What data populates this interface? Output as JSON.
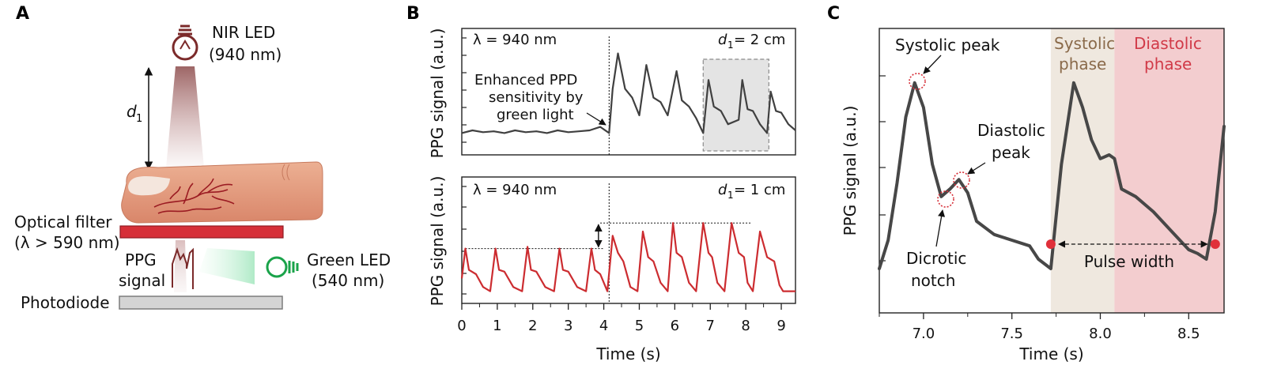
{
  "panel_a": {
    "label": "A",
    "nir_led": "NIR LED",
    "nir_wavelength": "(940 nm)",
    "d1_symbol": "d",
    "d1_sub": "1",
    "optical_filter": "Optical filter",
    "filter_spec": "(λ > 590 nm)",
    "ppg_signal_1": "PPG",
    "ppg_signal_2": "signal",
    "green_led": "Green LED",
    "green_wavelength": "(540 nm)",
    "photodiode": "Photodiode",
    "colors": {
      "nir": "#7b2a2a",
      "green": "#1aa34a",
      "filter": "#d62f38",
      "finger": "#e6987a",
      "vessel": "#9b1b22"
    }
  },
  "panel_b": {
    "label": "B",
    "ylabel": "PPG signal (a.u.)",
    "xlabel": "Time (s)",
    "top_wavelength": "λ = 940 nm",
    "top_distance": "d",
    "top_distance_sub": "1",
    "top_distance_value": " = 2 cm",
    "bottom_wavelength": "λ = 940 nm",
    "bottom_distance": "d",
    "bottom_distance_sub": "1",
    "bottom_distance_value": " = 1 cm",
    "annotation_1": "Enhanced PPD",
    "annotation_2": "sensitivity by",
    "annotation_3": "green light",
    "colors": {
      "top": "#404040",
      "bottom": "#cc2c30",
      "highlight": "#e4e4e4"
    }
  },
  "panel_c": {
    "label": "C",
    "ylabel": "PPG signal (a.u.)",
    "xlabel": "Time (s)",
    "systolic_peak": "Systolic peak",
    "diastolic_peak_1": "Diastolic",
    "diastolic_peak_2": "peak",
    "dicrotic_1": "Dicrotic",
    "dicrotic_2": "notch",
    "systolic_phase_1": "Systolic",
    "systolic_phase_2": "phase",
    "diastolic_phase_1": "Diastolic",
    "diastolic_phase_2": "phase",
    "pulse_width": "Pulse width",
    "colors": {
      "systolic_phase": "#efe8df",
      "diastolic_phase": "#f3cdcf",
      "systolic_text": "#8a6a4a",
      "diastolic_text": "#d13a48",
      "marker": "#e0303a"
    }
  },
  "chart_data": [
    {
      "type": "line",
      "panel": "B-top",
      "title": "",
      "xlabel": "Time (s)",
      "ylabel": "PPG signal (a.u.)",
      "xlim": [
        0,
        9.4
      ],
      "x_ticks": [
        0,
        1,
        2,
        3,
        4,
        5,
        6,
        7,
        8,
        9
      ],
      "series": [
        {
          "x": [
            0,
            0.3,
            0.6,
            0.9,
            1.2,
            1.5,
            1.8,
            2.1,
            2.4,
            2.7,
            3.0,
            3.3,
            3.6,
            3.9,
            4.15,
            4.25,
            4.4,
            4.6,
            4.8,
            5.0,
            5.2,
            5.4,
            5.6,
            5.8,
            6.05,
            6.2,
            6.4,
            6.6,
            6.8,
            6.95,
            7.1,
            7.3,
            7.5,
            7.8,
            7.9,
            8.05,
            8.2,
            8.4,
            8.6,
            8.7,
            8.85,
            9.0,
            9.2,
            9.4
          ],
          "y": [
            0.05,
            0.08,
            0.06,
            0.07,
            0.05,
            0.08,
            0.06,
            0.07,
            0.05,
            0.08,
            0.06,
            0.07,
            0.08,
            0.12,
            0.05,
            0.55,
            0.95,
            0.55,
            0.45,
            0.25,
            0.82,
            0.45,
            0.4,
            0.25,
            0.75,
            0.42,
            0.35,
            0.22,
            0.05,
            0.65,
            0.35,
            0.3,
            0.15,
            0.2,
            0.65,
            0.32,
            0.3,
            0.15,
            0.05,
            0.52,
            0.3,
            0.28,
            0.15,
            0.08
          ]
        }
      ],
      "highlight_x": [
        6.8,
        8.65
      ]
    },
    {
      "type": "line",
      "panel": "B-bottom",
      "title": "",
      "xlabel": "Time (s)",
      "ylabel": "PPG signal (a.u.)",
      "xlim": [
        0,
        9.4
      ],
      "x_ticks": [
        0,
        1,
        2,
        3,
        4,
        5,
        6,
        7,
        8,
        9
      ],
      "series": [
        {
          "x": [
            0,
            0.1,
            0.2,
            0.4,
            0.6,
            0.8,
            0.95,
            1.05,
            1.2,
            1.45,
            1.7,
            1.85,
            1.95,
            2.1,
            2.35,
            2.6,
            2.75,
            2.85,
            3.0,
            3.25,
            3.5,
            3.65,
            3.75,
            3.9,
            4.1,
            4.25,
            4.4,
            4.55,
            4.75,
            4.95,
            5.1,
            5.25,
            5.4,
            5.6,
            5.8,
            5.95,
            6.05,
            6.2,
            6.4,
            6.6,
            6.8,
            6.95,
            7.05,
            7.2,
            7.4,
            7.6,
            7.8,
            7.95,
            8.05,
            8.2,
            8.4,
            8.6,
            8.8,
            8.95,
            9.05,
            9.2,
            9.4
          ],
          "y": [
            0.2,
            0.55,
            0.3,
            0.25,
            0.1,
            0.05,
            0.55,
            0.3,
            0.28,
            0.1,
            0.05,
            0.57,
            0.3,
            0.28,
            0.1,
            0.05,
            0.55,
            0.3,
            0.28,
            0.1,
            0.05,
            0.55,
            0.3,
            0.25,
            0.05,
            0.7,
            0.5,
            0.4,
            0.1,
            0.05,
            0.75,
            0.45,
            0.4,
            0.15,
            0.05,
            0.85,
            0.5,
            0.45,
            0.15,
            0.05,
            0.85,
            0.5,
            0.45,
            0.15,
            0.05,
            0.85,
            0.5,
            0.45,
            0.15,
            0.05,
            0.75,
            0.45,
            0.4,
            0.12,
            0.05,
            0.05,
            0.05
          ]
        }
      ],
      "reference_levels": [
        0.55,
        0.85
      ]
    },
    {
      "type": "line",
      "panel": "C",
      "title": "",
      "xlabel": "Time (s)",
      "ylabel": "PPG signal (a.u.)",
      "xlim": [
        6.75,
        8.7
      ],
      "x_ticks": [
        7.0,
        7.5,
        8.0,
        8.5
      ],
      "series": [
        {
          "x": [
            6.75,
            6.8,
            6.85,
            6.9,
            6.95,
            7.0,
            7.05,
            7.1,
            7.15,
            7.2,
            7.25,
            7.3,
            7.4,
            7.5,
            7.6,
            7.65,
            7.72,
            7.78,
            7.85,
            7.9,
            7.95,
            8.0,
            8.05,
            8.08,
            8.12,
            8.2,
            8.3,
            8.4,
            8.5,
            8.55,
            8.6,
            8.65,
            8.7
          ],
          "y": [
            0.0,
            0.15,
            0.45,
            0.8,
            0.98,
            0.85,
            0.55,
            0.38,
            0.42,
            0.47,
            0.4,
            0.25,
            0.18,
            0.15,
            0.12,
            0.05,
            0.0,
            0.55,
            0.98,
            0.85,
            0.68,
            0.58,
            0.6,
            0.58,
            0.42,
            0.38,
            0.3,
            0.2,
            0.1,
            0.08,
            0.05,
            0.3,
            0.75
          ]
        }
      ],
      "systolic_phase_x": [
        7.72,
        8.08
      ],
      "diastolic_phase_x": [
        8.08,
        8.7
      ],
      "pulse_width_x": [
        7.72,
        8.65
      ]
    }
  ]
}
